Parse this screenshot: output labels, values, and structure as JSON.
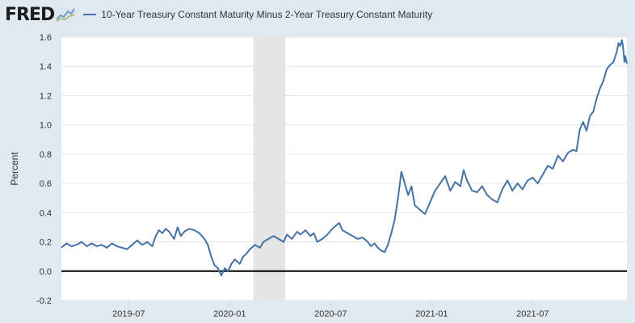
{
  "header": {
    "logo_text": "FRED",
    "legend_label": "10-Year Treasury Constant Maturity Minus 2-Year Treasury Constant Maturity"
  },
  "colors": {
    "background": "#e1e9f0",
    "plot_background": "#ffffff",
    "series": "#4572a7",
    "recession_band": "#e5e5e5",
    "zero_line": "#000000",
    "gridline": "#e6e6e6"
  },
  "chart_data": {
    "type": "line",
    "title": "10-Year Treasury Constant Maturity Minus 2-Year Treasury Constant Maturity",
    "xlabel": "",
    "ylabel": "Percent",
    "ylim": [
      -0.2,
      1.6
    ],
    "yticks": [
      -0.2,
      0.0,
      0.2,
      0.4,
      0.6,
      0.8,
      1.0,
      1.2,
      1.4,
      1.6
    ],
    "ytick_labels": [
      "-0.2",
      "0.0",
      "0.2",
      "0.4",
      "0.6",
      "0.8",
      "1.0",
      "1.2",
      "1.4",
      "1.6"
    ],
    "x_unit": "months since 2019-01-01",
    "xlim": [
      2.0,
      35.6
    ],
    "xticks": [
      6,
      12,
      18,
      24,
      30
    ],
    "xtick_labels": [
      "2019-07",
      "2020-01",
      "2020-07",
      "2021-01",
      "2021-07"
    ],
    "recession": [
      13.4,
      15.3
    ],
    "grid": true,
    "legend_position": "top-left",
    "series": [
      {
        "name": "10-Year Treasury Constant Maturity Minus 2-Year Treasury Constant Maturity",
        "points": [
          [
            2.0,
            0.16
          ],
          [
            2.3,
            0.19
          ],
          [
            2.6,
            0.17
          ],
          [
            2.9,
            0.18
          ],
          [
            3.2,
            0.2
          ],
          [
            3.5,
            0.17
          ],
          [
            3.8,
            0.19
          ],
          [
            4.1,
            0.17
          ],
          [
            4.4,
            0.18
          ],
          [
            4.7,
            0.16
          ],
          [
            5.0,
            0.19
          ],
          [
            5.3,
            0.17
          ],
          [
            5.6,
            0.16
          ],
          [
            5.9,
            0.15
          ],
          [
            6.2,
            0.18
          ],
          [
            6.5,
            0.21
          ],
          [
            6.8,
            0.18
          ],
          [
            7.1,
            0.2
          ],
          [
            7.4,
            0.17
          ],
          [
            7.6,
            0.24
          ],
          [
            7.8,
            0.28
          ],
          [
            8.0,
            0.26
          ],
          [
            8.2,
            0.29
          ],
          [
            8.4,
            0.27
          ],
          [
            8.7,
            0.22
          ],
          [
            8.9,
            0.3
          ],
          [
            9.1,
            0.24
          ],
          [
            9.3,
            0.27
          ],
          [
            9.6,
            0.29
          ],
          [
            9.9,
            0.28
          ],
          [
            10.2,
            0.26
          ],
          [
            10.5,
            0.22
          ],
          [
            10.7,
            0.18
          ],
          [
            10.9,
            0.1
          ],
          [
            11.1,
            0.04
          ],
          [
            11.3,
            0.02
          ],
          [
            11.5,
            -0.03
          ],
          [
            11.7,
            0.02
          ],
          [
            11.9,
            0.0
          ],
          [
            12.1,
            0.05
          ],
          [
            12.3,
            0.08
          ],
          [
            12.6,
            0.05
          ],
          [
            12.8,
            0.1
          ],
          [
            13.0,
            0.12
          ],
          [
            13.2,
            0.15
          ],
          [
            13.5,
            0.18
          ],
          [
            13.8,
            0.16
          ],
          [
            14.0,
            0.2
          ],
          [
            14.3,
            0.22
          ],
          [
            14.6,
            0.24
          ],
          [
            14.9,
            0.22
          ],
          [
            15.2,
            0.2
          ],
          [
            15.4,
            0.25
          ],
          [
            15.7,
            0.22
          ],
          [
            16.0,
            0.27
          ],
          [
            16.2,
            0.25
          ],
          [
            16.5,
            0.28
          ],
          [
            16.8,
            0.24
          ],
          [
            17.0,
            0.26
          ],
          [
            17.2,
            0.2
          ],
          [
            17.5,
            0.22
          ],
          [
            17.8,
            0.25
          ],
          [
            18.1,
            0.29
          ],
          [
            18.3,
            0.31
          ],
          [
            18.5,
            0.33
          ],
          [
            18.7,
            0.28
          ],
          [
            19.0,
            0.26
          ],
          [
            19.3,
            0.24
          ],
          [
            19.6,
            0.22
          ],
          [
            19.9,
            0.23
          ],
          [
            20.2,
            0.2
          ],
          [
            20.4,
            0.17
          ],
          [
            20.6,
            0.19
          ],
          [
            20.8,
            0.16
          ],
          [
            21.0,
            0.14
          ],
          [
            21.2,
            0.13
          ],
          [
            21.4,
            0.18
          ],
          [
            21.6,
            0.26
          ],
          [
            21.8,
            0.35
          ],
          [
            22.0,
            0.5
          ],
          [
            22.2,
            0.68
          ],
          [
            22.4,
            0.6
          ],
          [
            22.6,
            0.52
          ],
          [
            22.8,
            0.58
          ],
          [
            23.0,
            0.45
          ],
          [
            23.3,
            0.42
          ],
          [
            23.6,
            0.39
          ],
          [
            23.9,
            0.47
          ],
          [
            24.2,
            0.55
          ],
          [
            24.5,
            0.6
          ],
          [
            24.8,
            0.65
          ],
          [
            25.1,
            0.55
          ],
          [
            25.4,
            0.61
          ],
          [
            25.7,
            0.58
          ],
          [
            25.9,
            0.69
          ],
          [
            26.1,
            0.62
          ],
          [
            26.4,
            0.55
          ],
          [
            26.7,
            0.54
          ],
          [
            27.0,
            0.58
          ],
          [
            27.3,
            0.52
          ],
          [
            27.6,
            0.49
          ],
          [
            27.9,
            0.47
          ],
          [
            28.2,
            0.56
          ],
          [
            28.5,
            0.62
          ],
          [
            28.8,
            0.55
          ],
          [
            29.1,
            0.6
          ],
          [
            29.4,
            0.56
          ],
          [
            29.7,
            0.62
          ],
          [
            30.0,
            0.64
          ],
          [
            30.3,
            0.6
          ],
          [
            30.6,
            0.66
          ],
          [
            30.9,
            0.72
          ],
          [
            31.2,
            0.7
          ],
          [
            31.5,
            0.79
          ],
          [
            31.8,
            0.75
          ],
          [
            32.1,
            0.81
          ],
          [
            32.4,
            0.83
          ],
          [
            32.6,
            0.82
          ],
          [
            32.8,
            0.97
          ],
          [
            33.0,
            1.02
          ],
          [
            33.2,
            0.96
          ],
          [
            33.4,
            1.06
          ],
          [
            33.6,
            1.09
          ],
          [
            33.8,
            1.18
          ],
          [
            34.0,
            1.25
          ],
          [
            34.2,
            1.3
          ],
          [
            34.4,
            1.38
          ],
          [
            34.6,
            1.41
          ],
          [
            34.8,
            1.43
          ],
          [
            35.0,
            1.5
          ],
          [
            35.1,
            1.56
          ],
          [
            35.2,
            1.54
          ],
          [
            35.3,
            1.58
          ],
          [
            35.35,
            1.55
          ],
          [
            35.4,
            1.5
          ],
          [
            35.45,
            1.43
          ],
          [
            35.5,
            1.47
          ],
          [
            35.6,
            1.42
          ]
        ]
      }
    ]
  }
}
